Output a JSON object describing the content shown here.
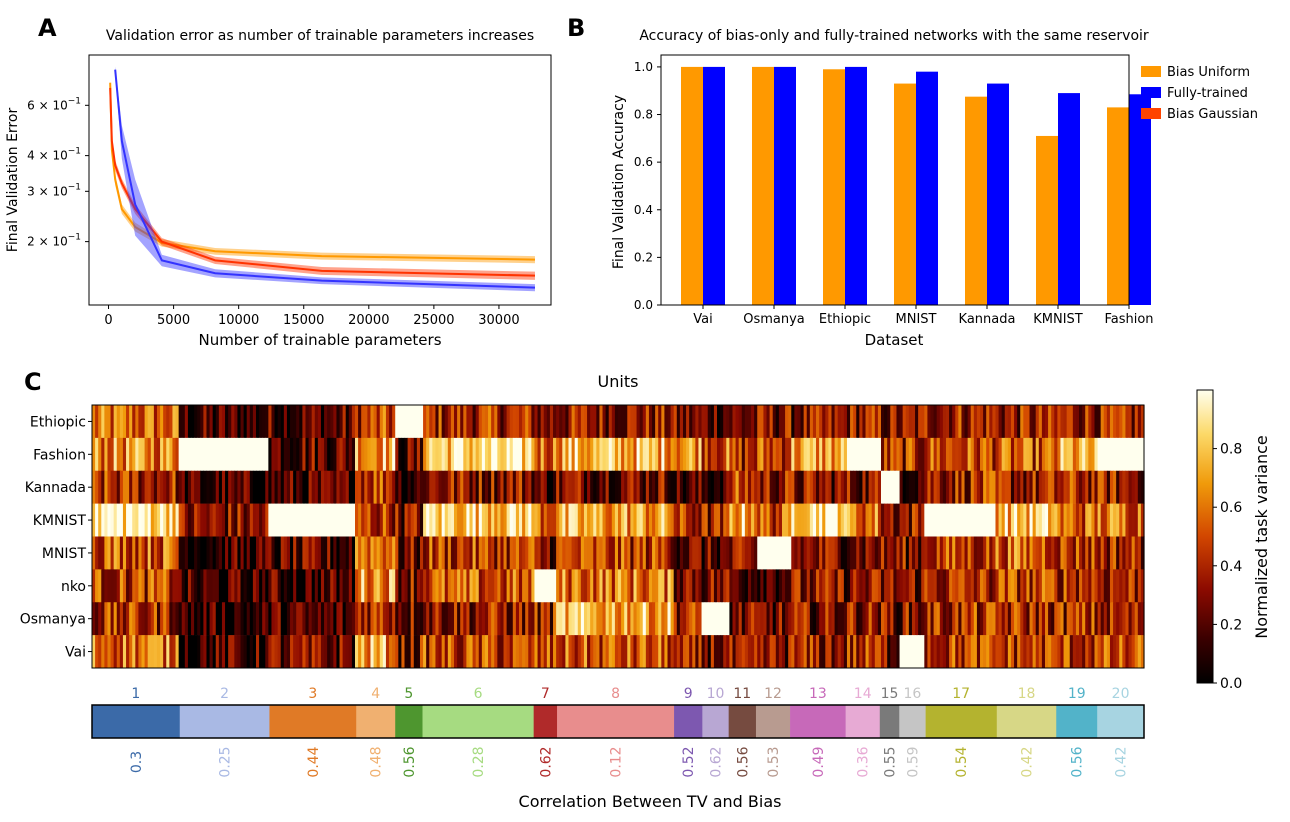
{
  "panel_labels": {
    "a": "A",
    "b": "B",
    "c": "C"
  },
  "chart_data": [
    {
      "type": "line",
      "panel": "A",
      "title": "Validation error as number of trainable parameters increases",
      "xlabel": "Number of trainable parameters",
      "ylabel": "Final Validation Error",
      "xlim": [
        -1500,
        34000
      ],
      "x_ticks": [
        "0",
        "5000",
        "10000",
        "15000",
        "20000",
        "25000",
        "30000"
      ],
      "y_scale": "log",
      "ylim": [
        0.12,
        0.9
      ],
      "y_ticks": [
        {
          "value": 0.2,
          "base": "2 × 10",
          "exp": "−1"
        },
        {
          "value": 0.3,
          "base": "3 × 10",
          "exp": "−1"
        },
        {
          "value": 0.4,
          "base": "4 × 10",
          "exp": "−1"
        },
        {
          "value": 0.6,
          "base": "6 × 10",
          "exp": "−1"
        }
      ],
      "series": [
        {
          "name": "Bias Uniform",
          "color": "#ff9900",
          "x": [
            128,
            256,
            512,
            1024,
            2048,
            4096,
            8192,
            16384,
            32768
          ],
          "y": [
            0.72,
            0.42,
            0.33,
            0.26,
            0.225,
            0.198,
            0.185,
            0.178,
            0.173
          ],
          "band": [
            0.012,
            0.02,
            0.015,
            0.01,
            0.008,
            0.006,
            0.005,
            0.005,
            0.005
          ]
        },
        {
          "name": "Bias Gaussian",
          "color": "#ff3300",
          "x": [
            128,
            256,
            512,
            1024,
            2048,
            4096,
            8192,
            16384,
            32768
          ],
          "y": [
            0.69,
            0.45,
            0.37,
            0.32,
            0.26,
            0.2,
            0.172,
            0.158,
            0.152
          ],
          "band": [
            0.012,
            0.02,
            0.015,
            0.012,
            0.01,
            0.006,
            0.005,
            0.005,
            0.005
          ]
        },
        {
          "name": "Fully-trained",
          "color": "#3333ff",
          "x": [
            512,
            1024,
            2048,
            4096,
            8192,
            16384,
            32768
          ],
          "y": [
            0.8,
            0.45,
            0.27,
            0.172,
            0.155,
            0.146,
            0.138
          ],
          "band": [
            0.02,
            0.06,
            0.06,
            0.008,
            0.005,
            0.004,
            0.004
          ]
        }
      ]
    },
    {
      "type": "bar",
      "panel": "B",
      "title": "Accuracy of bias-only and fully-trained networks with the same reservoir",
      "xlabel": "Dataset",
      "ylabel": "Final Validation Accuracy",
      "ylim": [
        0,
        1.05
      ],
      "y_ticks": [
        "0.0",
        "0.2",
        "0.4",
        "0.6",
        "0.8",
        "1.0"
      ],
      "categories": [
        "Vai",
        "Osmanya",
        "Ethiopic",
        "MNIST",
        "Kannada",
        "KMNIST",
        "Fashion"
      ],
      "series": [
        {
          "name": "Bias Uniform",
          "color": "#ff9900",
          "values": [
            1.0,
            1.0,
            0.99,
            0.93,
            0.875,
            0.71,
            0.83
          ]
        },
        {
          "name": "Fully-trained",
          "color": "#0000ff",
          "values": [
            1.0,
            1.0,
            1.0,
            0.98,
            0.93,
            0.89,
            0.885
          ]
        }
      ],
      "legend": {
        "placement": "right",
        "entries": [
          {
            "label": "Bias Uniform",
            "color": "#ff9900"
          },
          {
            "label": "Fully-trained",
            "color": "#0000ff"
          },
          {
            "label": "Bias Gaussian",
            "color": "#ff4400"
          }
        ]
      }
    },
    {
      "type": "heatmap",
      "panel": "C",
      "title": "Units",
      "rows": [
        "Ethiopic",
        "Fashion",
        "Kannada",
        "KMNIST",
        "MNIST",
        "nko",
        "Osmanya",
        "Vai"
      ],
      "colorbar": {
        "label": "Normalized task variance",
        "ticks": [
          "0.0",
          "0.2",
          "0.4",
          "0.6",
          "0.8"
        ],
        "range": [
          0,
          1
        ]
      },
      "xlabel": "Correlation Between TV and Bias",
      "clusters": [
        {
          "id": "1",
          "corr": "0.3",
          "color": "#3b6aa8",
          "weight": 90
        },
        {
          "id": "2",
          "corr": "0.25",
          "color": "#a9b9e4",
          "weight": 92
        },
        {
          "id": "3",
          "corr": "0.44",
          "color": "#e07a26",
          "weight": 89
        },
        {
          "id": "4",
          "corr": "0.48",
          "color": "#f0b070",
          "weight": 40
        },
        {
          "id": "5",
          "corr": "0.56",
          "color": "#4e962f",
          "weight": 28
        },
        {
          "id": "6",
          "corr": "0.28",
          "color": "#a6db81",
          "weight": 114
        },
        {
          "id": "7",
          "corr": "0.62",
          "color": "#b02a2a",
          "weight": 24
        },
        {
          "id": "8",
          "corr": "0.12",
          "color": "#e88d8d",
          "weight": 120
        },
        {
          "id": "9",
          "corr": "0.52",
          "color": "#7d58b0",
          "weight": 29
        },
        {
          "id": "10",
          "corr": "0.62",
          "color": "#b8a7d3",
          "weight": 27
        },
        {
          "id": "11",
          "corr": "0.56",
          "color": "#764b40",
          "weight": 28
        },
        {
          "id": "12",
          "corr": "0.53",
          "color": "#b89b90",
          "weight": 35
        },
        {
          "id": "13",
          "corr": "0.49",
          "color": "#c769b9",
          "weight": 57
        },
        {
          "id": "14",
          "corr": "0.36",
          "color": "#e7aad4",
          "weight": 35
        },
        {
          "id": "15",
          "corr": "0.55",
          "color": "#7a7a7a",
          "weight": 20
        },
        {
          "id": "16",
          "corr": "0.59",
          "color": "#c5c5c5",
          "weight": 27
        },
        {
          "id": "17",
          "corr": "0.54",
          "color": "#b4b32f",
          "weight": 73
        },
        {
          "id": "18",
          "corr": "0.42",
          "color": "#d7d786",
          "weight": 61
        },
        {
          "id": "19",
          "corr": "0.56",
          "color": "#52b3c9",
          "weight": 42
        },
        {
          "id": "20",
          "corr": "0.42",
          "color": "#a7d4e1",
          "weight": 48
        }
      ]
    }
  ]
}
